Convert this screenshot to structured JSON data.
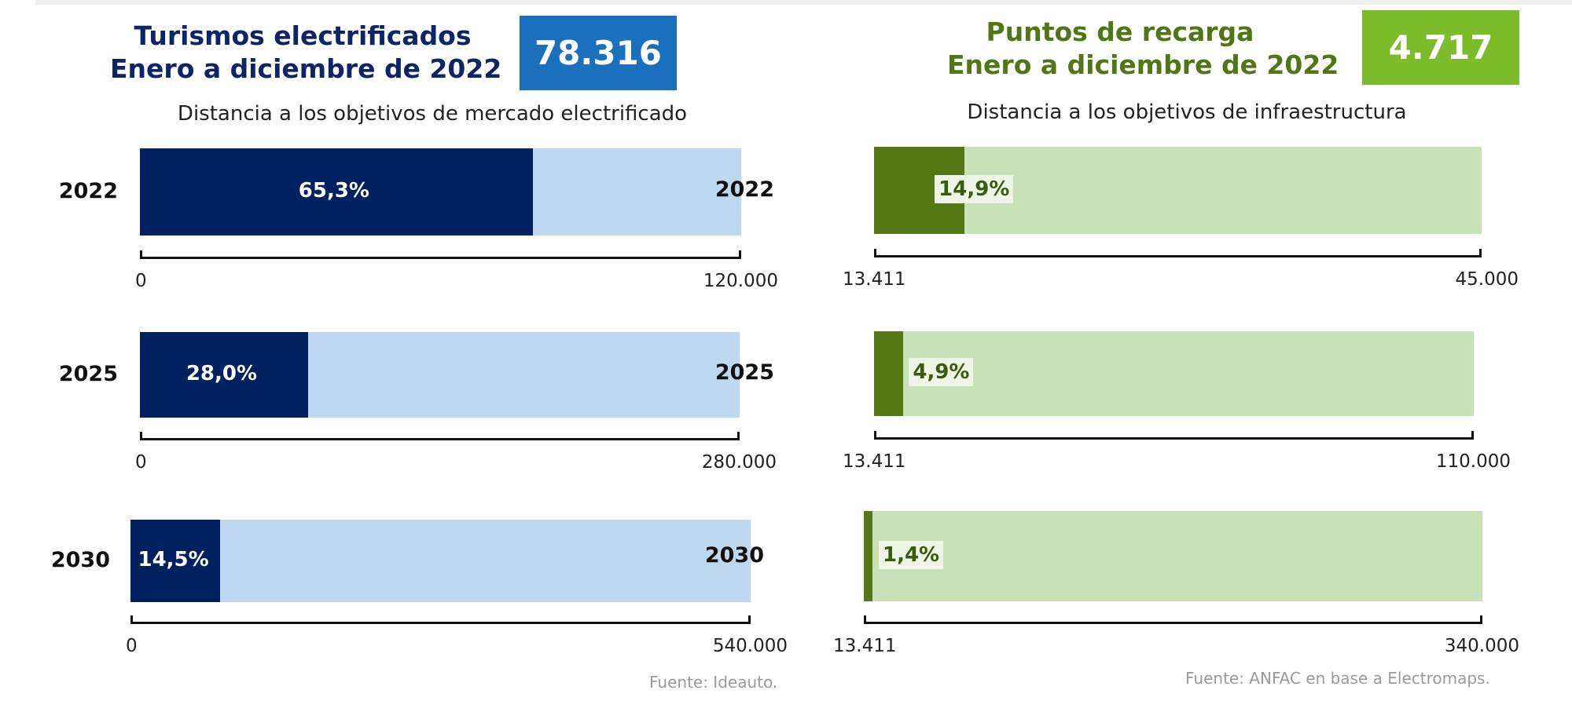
{
  "chart_data": [
    {
      "type": "bar",
      "title": "Turismos electrificados\nEnero a diciembre de 2022",
      "kpi": "78.316",
      "subtitle": "Distancia a los objetivos de mercado electrificado",
      "source": "Fuente: Ideauto.",
      "colors": {
        "title": "#0d2466",
        "kpi_bg": "#1a70bd",
        "fill": "#00205f",
        "track": "#bed8ef",
        "label": "#ffffff"
      },
      "rows": [
        {
          "category": "2022",
          "percent": 65.3,
          "label": "65,3%",
          "axis_min": "0",
          "axis_max": "120.000"
        },
        {
          "category": "2025",
          "percent": 28.0,
          "label": "28,0%",
          "axis_min": "0",
          "axis_max": "280.000"
        },
        {
          "category": "2030",
          "percent": 14.5,
          "label": "14,5%",
          "axis_min": "0",
          "axis_max": "540.000"
        }
      ]
    },
    {
      "type": "bar",
      "title": "Puntos de recarga\nEnero a diciembre de 2022",
      "kpi": "4.717",
      "subtitle": "Distancia a los objetivos de infraestructura",
      "source": "Fuente: ANFAC en base a Electromaps.",
      "colors": {
        "title": "#527516",
        "kpi_bg": "#7cbc2a",
        "fill": "#567716",
        "track": "#c8e2b8",
        "label": "#3a5a10",
        "label_bg": "#eef5e4"
      },
      "rows": [
        {
          "category": "2022",
          "percent": 14.9,
          "label": "14,9%",
          "axis_min": "13.411",
          "axis_max": "45.000"
        },
        {
          "category": "2025",
          "percent": 4.9,
          "label": "4,9%",
          "axis_min": "13.411",
          "axis_max": "110.000"
        },
        {
          "category": "2030",
          "percent": 1.4,
          "label": "1,4%",
          "axis_min": "13.411",
          "axis_max": "340.000"
        }
      ]
    }
  ]
}
